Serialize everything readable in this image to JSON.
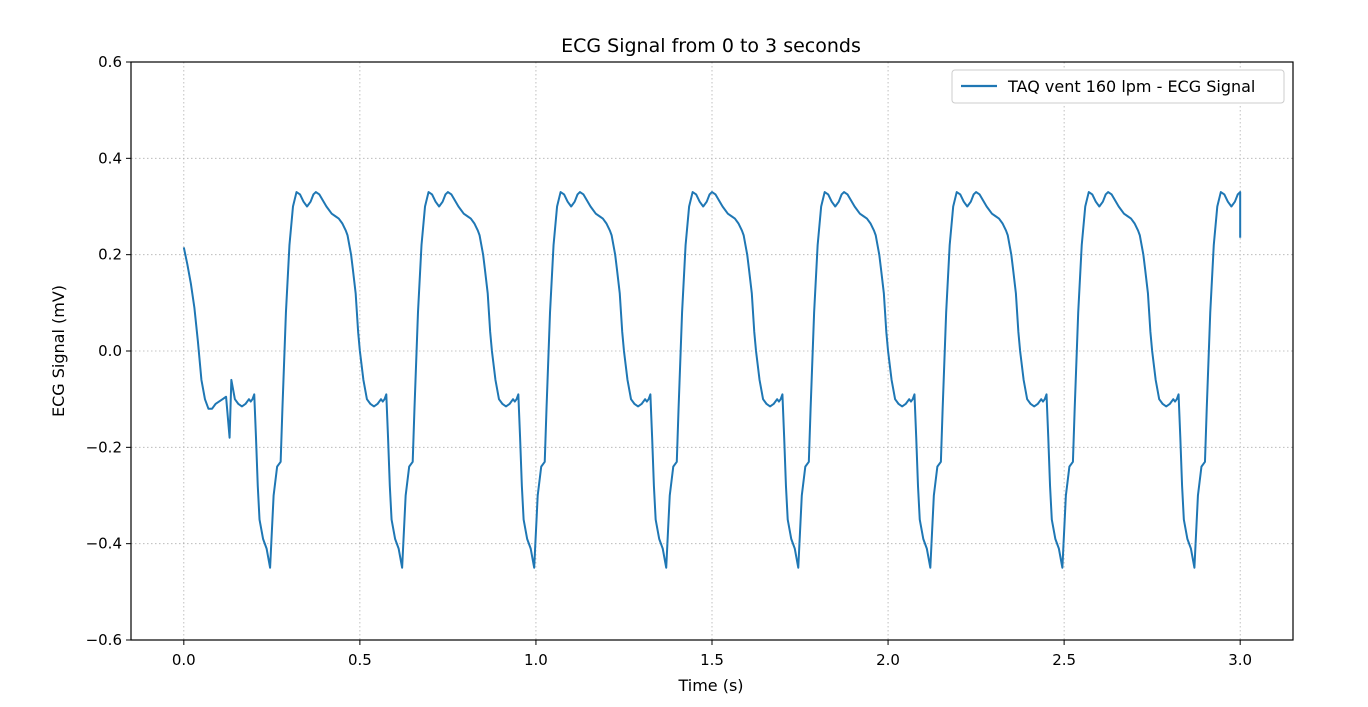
{
  "chart_data": {
    "type": "line",
    "title": "ECG Signal from 0 to 3 seconds",
    "xlabel": "Time (s)",
    "ylabel": "ECG Signal (mV)",
    "xlim": [
      -0.15,
      3.15
    ],
    "ylim": [
      -0.6,
      0.6
    ],
    "x_ticks": [
      0.0,
      0.5,
      1.0,
      1.5,
      2.0,
      2.5,
      3.0
    ],
    "x_tick_labels": [
      "0.0",
      "0.5",
      "1.0",
      "1.5",
      "2.0",
      "2.5",
      "3.0"
    ],
    "y_ticks": [
      -0.6,
      -0.4,
      -0.2,
      0.0,
      0.2,
      0.4,
      0.6
    ],
    "y_tick_labels": [
      "−0.6",
      "−0.4",
      "−0.2",
      "0.0",
      "0.2",
      "0.4",
      "0.6"
    ],
    "grid": true,
    "grid_style": "dotted",
    "legend_position": "top-right",
    "series": [
      {
        "name": "TAQ vent 160 lpm - ECG Signal",
        "color": "#1f77b4",
        "cycle_period": 0.375,
        "cycle_template": {
          "t": [
            0.0,
            0.01,
            0.03,
            0.045,
            0.055,
            0.065,
            0.075,
            0.085,
            0.09,
            0.1,
            0.105,
            0.113,
            0.12,
            0.125,
            0.135,
            0.145,
            0.155,
            0.165,
            0.175,
            0.185,
            0.19,
            0.195,
            0.2,
            0.205,
            0.21,
            0.215,
            0.225,
            0.235,
            0.245,
            0.255,
            0.265,
            0.275,
            0.28,
            0.29,
            0.3,
            0.31,
            0.32,
            0.33,
            0.34,
            0.35,
            0.36,
            0.368,
            0.375
          ],
          "v": [
            0.33,
            0.325,
            0.3,
            0.285,
            0.28,
            0.275,
            0.265,
            0.25,
            0.24,
            0.2,
            0.17,
            0.12,
            0.04,
            0.0,
            -0.06,
            -0.1,
            -0.11,
            -0.115,
            -0.11,
            -0.1,
            -0.105,
            -0.1,
            -0.09,
            -0.18,
            -0.28,
            -0.35,
            -0.39,
            -0.41,
            -0.45,
            -0.3,
            -0.24,
            -0.23,
            -0.12,
            0.08,
            0.22,
            0.3,
            0.33,
            0.325,
            0.31,
            0.3,
            0.31,
            0.325,
            0.33
          ]
        },
        "cycle_peak_times": [
          0.275,
          0.65,
          1.025,
          1.4,
          1.775,
          2.15,
          2.525,
          2.9
        ],
        "initial_segment": {
          "x": [
            0.0,
            0.01,
            0.02,
            0.03,
            0.04,
            0.05,
            0.06,
            0.07,
            0.08,
            0.09,
            0.1,
            0.11,
            0.12,
            0.13
          ],
          "y": [
            0.215,
            0.18,
            0.14,
            0.09,
            0.02,
            -0.06,
            -0.1,
            -0.12,
            -0.12,
            -0.11,
            -0.105,
            -0.1,
            -0.095,
            -0.18
          ]
        },
        "end_x": 3.0,
        "end_y": 0.235
      }
    ]
  }
}
